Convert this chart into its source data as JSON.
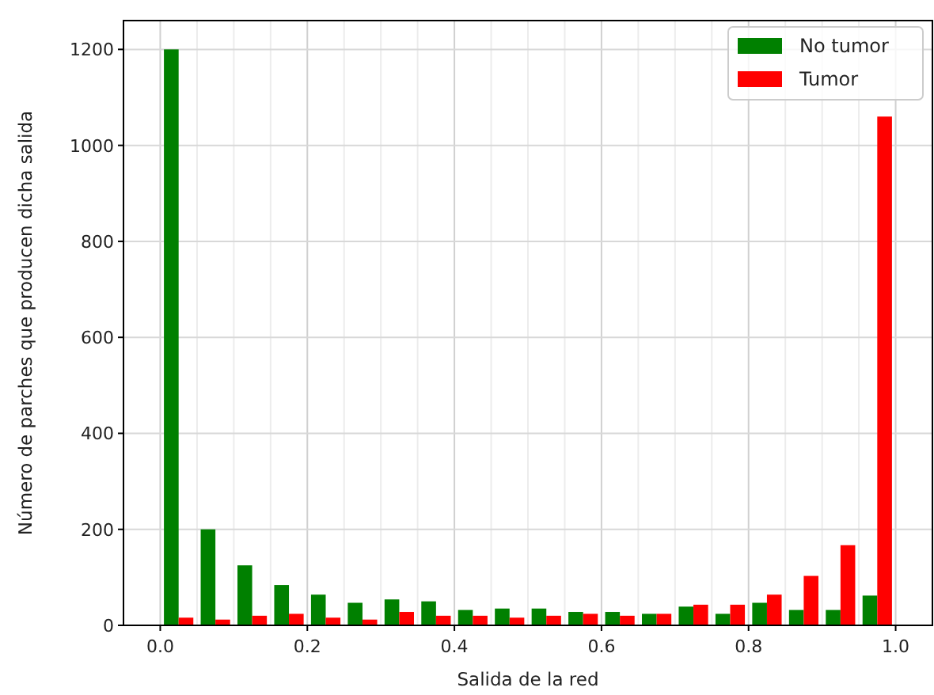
{
  "chart_data": {
    "type": "histogram",
    "xlabel": "Salida de la red",
    "ylabel": "Número de parches que producen dicha salida",
    "bins": [
      0,
      0.05,
      0.1,
      0.15,
      0.2,
      0.25,
      0.3,
      0.35,
      0.4,
      0.45,
      0.5,
      0.55,
      0.6,
      0.65,
      0.7,
      0.75,
      0.8,
      0.85,
      0.9,
      0.95,
      1
    ],
    "series": [
      {
        "name": "No tumor",
        "color": "#008000",
        "values": [
          1200,
          200,
          125,
          84,
          64,
          47,
          54,
          50,
          32,
          35,
          35,
          28,
          28,
          24,
          39,
          24,
          47,
          32,
          32,
          62
        ]
      },
      {
        "name": "Tumor",
        "color": "#ff0000",
        "values": [
          16,
          12,
          20,
          24,
          16,
          12,
          28,
          20,
          20,
          16,
          20,
          24,
          20,
          24,
          43,
          43,
          64,
          103,
          167,
          1060
        ]
      }
    ],
    "xlim": [
      -0.05,
      1.05
    ],
    "ylim": [
      0,
      1260
    ],
    "xticks": [
      {
        "value": 0,
        "label": "0.0"
      },
      {
        "value": 0.05,
        "label": null
      },
      {
        "value": 0.1,
        "label": null
      },
      {
        "value": 0.15,
        "label": null
      },
      {
        "value": 0.2,
        "label": "0.2"
      },
      {
        "value": 0.25,
        "label": null
      },
      {
        "value": 0.3,
        "label": null
      },
      {
        "value": 0.35,
        "label": null
      },
      {
        "value": 0.4,
        "label": "0.4"
      },
      {
        "value": 0.45,
        "label": null
      },
      {
        "value": 0.5,
        "label": null
      },
      {
        "value": 0.55,
        "label": null
      },
      {
        "value": 0.6,
        "label": "0.6"
      },
      {
        "value": 0.65,
        "label": null
      },
      {
        "value": 0.7,
        "label": null
      },
      {
        "value": 0.75,
        "label": null
      },
      {
        "value": 0.8,
        "label": "0.8"
      },
      {
        "value": 0.85,
        "label": null
      },
      {
        "value": 0.9,
        "label": null
      },
      {
        "value": 0.95,
        "label": null
      },
      {
        "value": 1,
        "label": "1.0"
      }
    ],
    "yticks": [
      0,
      200,
      400,
      600,
      800,
      1000,
      1200
    ],
    "grid": true,
    "legend": "top right"
  }
}
